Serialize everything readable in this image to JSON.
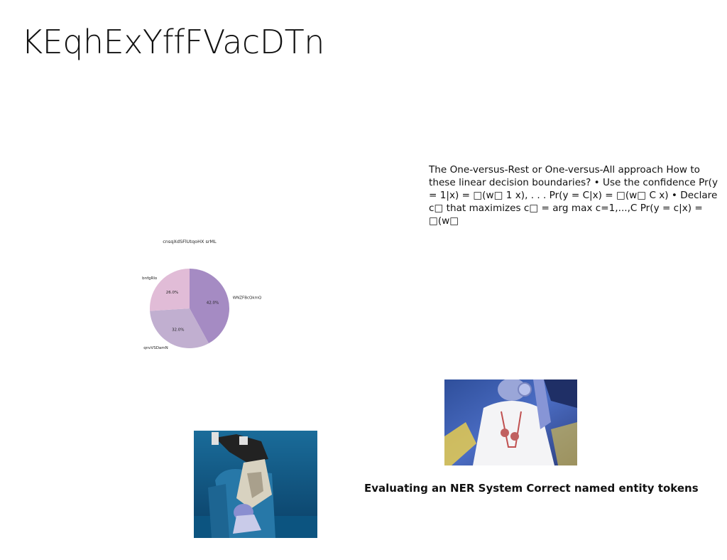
{
  "slide": {
    "title": "KEqhExYffFVacDTn",
    "body_text": "The One-versus-Rest or One-versus-All approach How to these linear decision boundaries? • Use the confidence Pr(y = 1|x) = □(w□ 1 x), . . . Pr(y = C|x) = □(w□ C x) • Declare c□ that maximizes c□ = arg max c=1,...,C Pr(y = c|x) = □(w□",
    "caption": "Evaluating an NER System Correct named entity tokens",
    "images": {
      "right_photo": "person-in-white-shirt-with-headphones-photo",
      "left_photo": "person-lounging-in-armchair-photo"
    }
  },
  "chart_data": {
    "type": "pie",
    "title": "cnsqXdSFlUtqoHX srML",
    "categories": [
      "WNZFBcQkmQ",
      "qnvVSDamN",
      "bnfgRlo"
    ],
    "values": [
      42.0,
      32.0,
      26.0
    ],
    "value_labels": [
      "42.0%",
      "32.0%",
      "26.0%"
    ],
    "colors": [
      "#a58bc3",
      "#c1afd0",
      "#e1bcd7"
    ],
    "legend": "none"
  }
}
